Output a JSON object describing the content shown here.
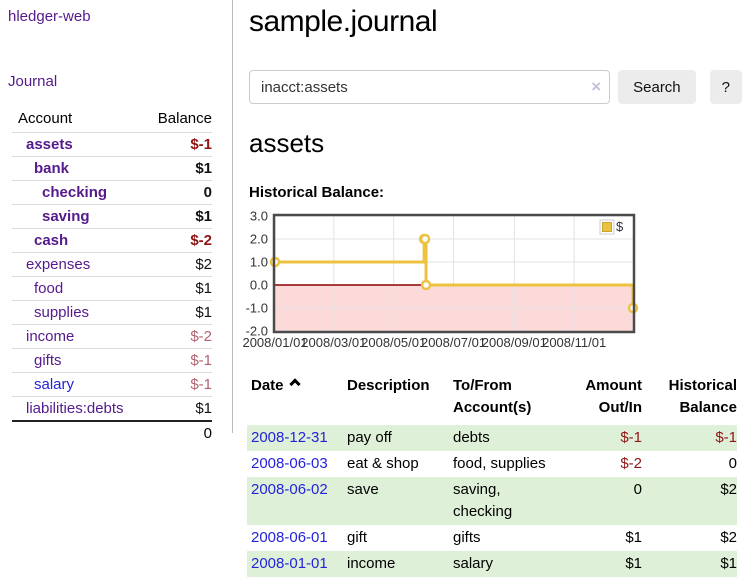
{
  "colors": {
    "visited_link_purple": "#551a8b",
    "link_blue": "#2323dc",
    "negative_red": "#911414",
    "muted_negative_rose": "#b26470",
    "row_green": "#dff0d8",
    "series_gold": "#edc240"
  },
  "sidebar": {
    "app_title": "hledger-web",
    "nav_journal": "Journal",
    "accounts_table": {
      "headers": [
        "Account",
        "Balance"
      ],
      "rows": [
        {
          "account": "assets",
          "balance": "$-1",
          "depth": 1,
          "bold": true,
          "balance_color": "negative"
        },
        {
          "account": "bank",
          "balance": "$1",
          "depth": 2,
          "bold": true,
          "balance_color": "normal"
        },
        {
          "account": "checking",
          "balance": "0",
          "depth": 3,
          "bold": true,
          "balance_color": "normal"
        },
        {
          "account": "saving",
          "balance": "$1",
          "depth": 3,
          "bold": true,
          "balance_color": "normal"
        },
        {
          "account": "cash",
          "balance": "$-2",
          "depth": 2,
          "bold": true,
          "balance_color": "negative"
        },
        {
          "account": "expenses",
          "balance": "$2",
          "depth": 1,
          "bold": false,
          "balance_color": "normal"
        },
        {
          "account": "food",
          "balance": "$1",
          "depth": 2,
          "bold": false,
          "balance_color": "normal"
        },
        {
          "account": "supplies",
          "balance": "$1",
          "depth": 2,
          "bold": false,
          "balance_color": "normal"
        },
        {
          "account": "income",
          "balance": "$-2",
          "depth": 1,
          "bold": false,
          "balance_color": "muted-negative"
        },
        {
          "account": "gifts",
          "balance": "$-1",
          "depth": 2,
          "bold": false,
          "balance_color": "muted-negative"
        },
        {
          "account": "salary",
          "balance": "$-1",
          "depth": 2,
          "bold": false,
          "balance_color": "muted-negative",
          "link_color": "blue"
        },
        {
          "account": "liabilities:debts",
          "balance": "$1",
          "depth": 1,
          "bold": false,
          "balance_color": "normal"
        }
      ],
      "total": "0"
    }
  },
  "main": {
    "title": "sample.journal",
    "search": {
      "value": "inacct:assets",
      "clear_icon": "×",
      "button_label": "Search",
      "help_label": "?"
    },
    "account_heading": "assets",
    "chart_label": "Historical Balance:",
    "register_table": {
      "headers": [
        "Date",
        "Description",
        "To/From Account(s)",
        "Amount Out/In",
        "Historical Balance"
      ],
      "sort_indicator": "ascending",
      "rows": [
        {
          "date": "2008-12-31",
          "description": "pay off",
          "accounts": "debts",
          "amount": "$-1",
          "amount_negative": true,
          "balance": "$-1",
          "balance_negative": true
        },
        {
          "date": "2008-06-03",
          "description": "eat & shop",
          "accounts": "food, supplies",
          "amount": "$-2",
          "amount_negative": true,
          "balance": "0",
          "balance_negative": false
        },
        {
          "date": "2008-06-02",
          "description": "save",
          "accounts": "saving, checking",
          "amount": "0",
          "amount_negative": false,
          "balance": "$2",
          "balance_negative": false
        },
        {
          "date": "2008-06-01",
          "description": "gift",
          "accounts": "gifts",
          "amount": "$1",
          "amount_negative": false,
          "balance": "$2",
          "balance_negative": false
        },
        {
          "date": "2008-01-01",
          "description": "income",
          "accounts": "salary",
          "amount": "$1",
          "amount_negative": false,
          "balance": "$1",
          "balance_negative": false
        }
      ]
    }
  },
  "chart_data": {
    "type": "line",
    "title": "Historical Balance:",
    "step": true,
    "series": [
      {
        "name": "$",
        "color": "#edc240",
        "points": [
          [
            "2008-01-01",
            1
          ],
          [
            "2008-06-01",
            2
          ],
          [
            "2008-06-02",
            2
          ],
          [
            "2008-06-03",
            0
          ],
          [
            "2008-12-31",
            -1
          ]
        ]
      }
    ],
    "x_range": [
      "2008-01-01",
      "2008-12-31"
    ],
    "ylim": [
      -2,
      3
    ],
    "y_ticks": [
      3,
      2,
      1,
      0,
      -1,
      -2
    ],
    "x_ticks": [
      "2008/01/01",
      "2008/03/01",
      "2008/05/01",
      "2008/07/01",
      "2008/09/01",
      "2008/11/01"
    ],
    "grid": true,
    "legend_position": "top-right",
    "negative_region_color": "#fcdada",
    "zero_line_color": "#8b0000",
    "border_color": "#4a4a4a"
  }
}
